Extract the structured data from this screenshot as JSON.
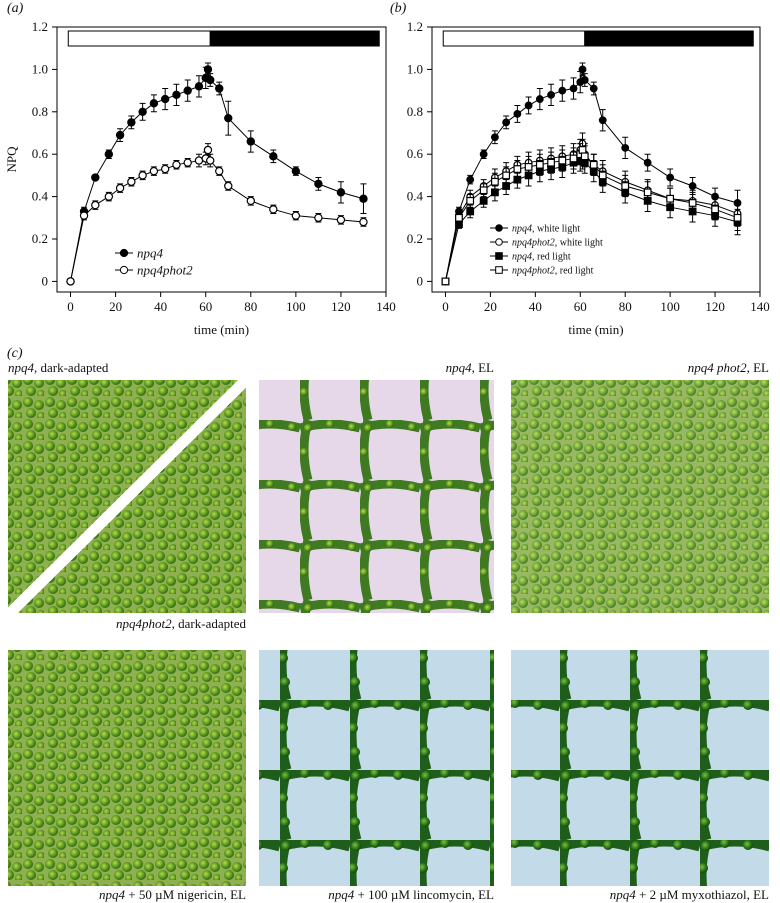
{
  "chart_data": [
    {
      "type": "line",
      "panel_label": "(a)",
      "x_label": "time (min)",
      "y_label": "NPQ",
      "xlim": [
        -6,
        140
      ],
      "ylim": [
        -0.05,
        1.2
      ],
      "xticks": [
        0,
        20,
        40,
        60,
        80,
        100,
        120,
        140
      ],
      "yticks": [
        0,
        0.2,
        0.4,
        0.6,
        0.8,
        {
          "value": 1,
          "label": "1.0"
        },
        1.2
      ],
      "legend": "lower left",
      "bar_segments": [
        {
          "from": -1,
          "to": 62,
          "fill": "#ffffff"
        },
        {
          "from": 62,
          "to": 137,
          "fill": "#000000"
        }
      ],
      "x": [
        0,
        6,
        11,
        17,
        22,
        27,
        32,
        37,
        42,
        47,
        52,
        57,
        60,
        61,
        62,
        66,
        70,
        80,
        90,
        100,
        110,
        120,
        130
      ],
      "series": [
        {
          "name": "npq4",
          "color": "#000000",
          "marker": "circle",
          "filled": true,
          "values": [
            0,
            0.33,
            0.49,
            0.6,
            0.69,
            0.75,
            0.8,
            0.84,
            0.86,
            0.88,
            0.9,
            0.92,
            0.96,
            1.0,
            0.95,
            0.91,
            0.77,
            0.66,
            0.59,
            0.52,
            0.46,
            0.42,
            0.39
          ],
          "errors": [
            0,
            0.02,
            0.01,
            0.02,
            0.03,
            0.03,
            0.04,
            0.04,
            0.05,
            0.05,
            0.05,
            0.05,
            0.05,
            0.03,
            0.03,
            0.03,
            0.08,
            0.05,
            0.03,
            0.02,
            0.03,
            0.05,
            0.07
          ]
        },
        {
          "name": "npq4phot2",
          "color": "#000000",
          "marker": "circle",
          "filled": false,
          "values": [
            0,
            0.31,
            0.36,
            0.4,
            0.44,
            0.47,
            0.5,
            0.52,
            0.53,
            0.55,
            0.56,
            0.57,
            0.58,
            0.62,
            0.57,
            0.52,
            0.45,
            0.38,
            0.34,
            0.31,
            0.3,
            0.29,
            0.28
          ],
          "errors": [
            0,
            0.02,
            0.02,
            0.02,
            0.02,
            0.02,
            0.02,
            0.02,
            0.02,
            0.02,
            0.02,
            0.03,
            0.03,
            0.03,
            0.03,
            0.02,
            0.02,
            0.02,
            0.02,
            0.02,
            0.02,
            0.02,
            0.02
          ]
        }
      ]
    },
    {
      "type": "line",
      "panel_label": "(b)",
      "x_label": "time (min)",
      "xlim": [
        -6,
        140
      ],
      "ylim": [
        -0.05,
        1.2
      ],
      "xticks": [
        0,
        20,
        40,
        60,
        80,
        100,
        120,
        140
      ],
      "yticks": [
        0,
        0.2,
        0.4,
        0.6,
        0.8,
        {
          "value": 1,
          "label": "1.0"
        },
        1.2
      ],
      "legend": "lower left",
      "bar_segments": [
        {
          "from": -1,
          "to": 62,
          "fill": "#ffffff"
        },
        {
          "from": 62,
          "to": 137,
          "fill": "#000000"
        }
      ],
      "x": [
        0,
        6,
        11,
        17,
        22,
        27,
        32,
        37,
        42,
        47,
        52,
        57,
        60,
        61,
        62,
        66,
        70,
        80,
        90,
        100,
        110,
        120,
        130
      ],
      "series": [
        {
          "name": "npq4",
          "name_suffix": ", white light",
          "color": "#000000",
          "marker": "circle",
          "filled": true,
          "values": [
            0,
            0.33,
            0.48,
            0.6,
            0.68,
            0.75,
            0.79,
            0.83,
            0.86,
            0.88,
            0.9,
            0.91,
            0.94,
            1.0,
            0.95,
            0.91,
            0.76,
            0.63,
            0.56,
            0.49,
            0.45,
            0.4,
            0.37
          ],
          "errors": [
            0,
            0.02,
            0.02,
            0.02,
            0.03,
            0.03,
            0.04,
            0.04,
            0.05,
            0.05,
            0.05,
            0.05,
            0.05,
            0.03,
            0.03,
            0.03,
            0.05,
            0.05,
            0.04,
            0.04,
            0.04,
            0.04,
            0.06
          ]
        },
        {
          "name": "npq4phot2",
          "name_suffix": ", white light",
          "color": "#000000",
          "marker": "circle",
          "filled": false,
          "values": [
            0,
            0.31,
            0.4,
            0.45,
            0.49,
            0.52,
            0.55,
            0.56,
            0.57,
            0.58,
            0.59,
            0.6,
            0.62,
            0.65,
            0.6,
            0.55,
            0.52,
            0.47,
            0.43,
            0.39,
            0.38,
            0.36,
            0.32
          ],
          "errors": [
            0,
            0.02,
            0.03,
            0.03,
            0.04,
            0.04,
            0.04,
            0.05,
            0.05,
            0.05,
            0.05,
            0.05,
            0.05,
            0.05,
            0.05,
            0.05,
            0.05,
            0.05,
            0.05,
            0.05,
            0.05,
            0.05,
            0.06
          ]
        },
        {
          "name": "npq4",
          "name_suffix": ", red light",
          "color": "#000000",
          "marker": "square",
          "filled": true,
          "values": [
            0,
            0.27,
            0.33,
            0.38,
            0.42,
            0.45,
            0.48,
            0.5,
            0.52,
            0.53,
            0.54,
            0.56,
            0.57,
            0.58,
            0.56,
            0.52,
            0.47,
            0.42,
            0.38,
            0.35,
            0.33,
            0.31,
            0.28
          ],
          "errors": [
            0,
            0.02,
            0.03,
            0.03,
            0.04,
            0.04,
            0.04,
            0.05,
            0.05,
            0.05,
            0.05,
            0.05,
            0.05,
            0.05,
            0.05,
            0.05,
            0.05,
            0.05,
            0.05,
            0.05,
            0.05,
            0.05,
            0.06
          ]
        },
        {
          "name": "npq4phot2",
          "name_suffix": ", red light",
          "color": "#000000",
          "marker": "square",
          "filled": false,
          "values": [
            0,
            0.3,
            0.38,
            0.43,
            0.47,
            0.5,
            0.53,
            0.54,
            0.55,
            0.56,
            0.57,
            0.58,
            0.6,
            0.62,
            0.59,
            0.55,
            0.5,
            0.45,
            0.42,
            0.39,
            0.37,
            0.34,
            0.3
          ],
          "errors": [
            0,
            0.02,
            0.03,
            0.03,
            0.04,
            0.04,
            0.04,
            0.05,
            0.05,
            0.05,
            0.05,
            0.05,
            0.05,
            0.05,
            0.05,
            0.05,
            0.05,
            0.05,
            0.05,
            0.05,
            0.05,
            0.05,
            0.06
          ]
        }
      ]
    }
  ],
  "micrograph_panel": {
    "panel_label": "(c)",
    "captions": [
      {
        "genotype": "npq4",
        "condition": ", dark-adapted"
      },
      {
        "genotype": "npq4",
        "condition": ", EL"
      },
      {
        "genotype": "npq4 phot2",
        "condition": ", EL"
      },
      {
        "genotype": "npq4phot2",
        "condition": ", dark-adapted"
      },
      {
        "genotype": "npq4",
        "condition": " + 50 µM nigericin, EL"
      },
      {
        "genotype": "npq4",
        "condition": " + 100 µM lincomycin, EL"
      },
      {
        "genotype": "npq4",
        "condition": " + 2 µM myxothiazol, EL"
      }
    ]
  }
}
